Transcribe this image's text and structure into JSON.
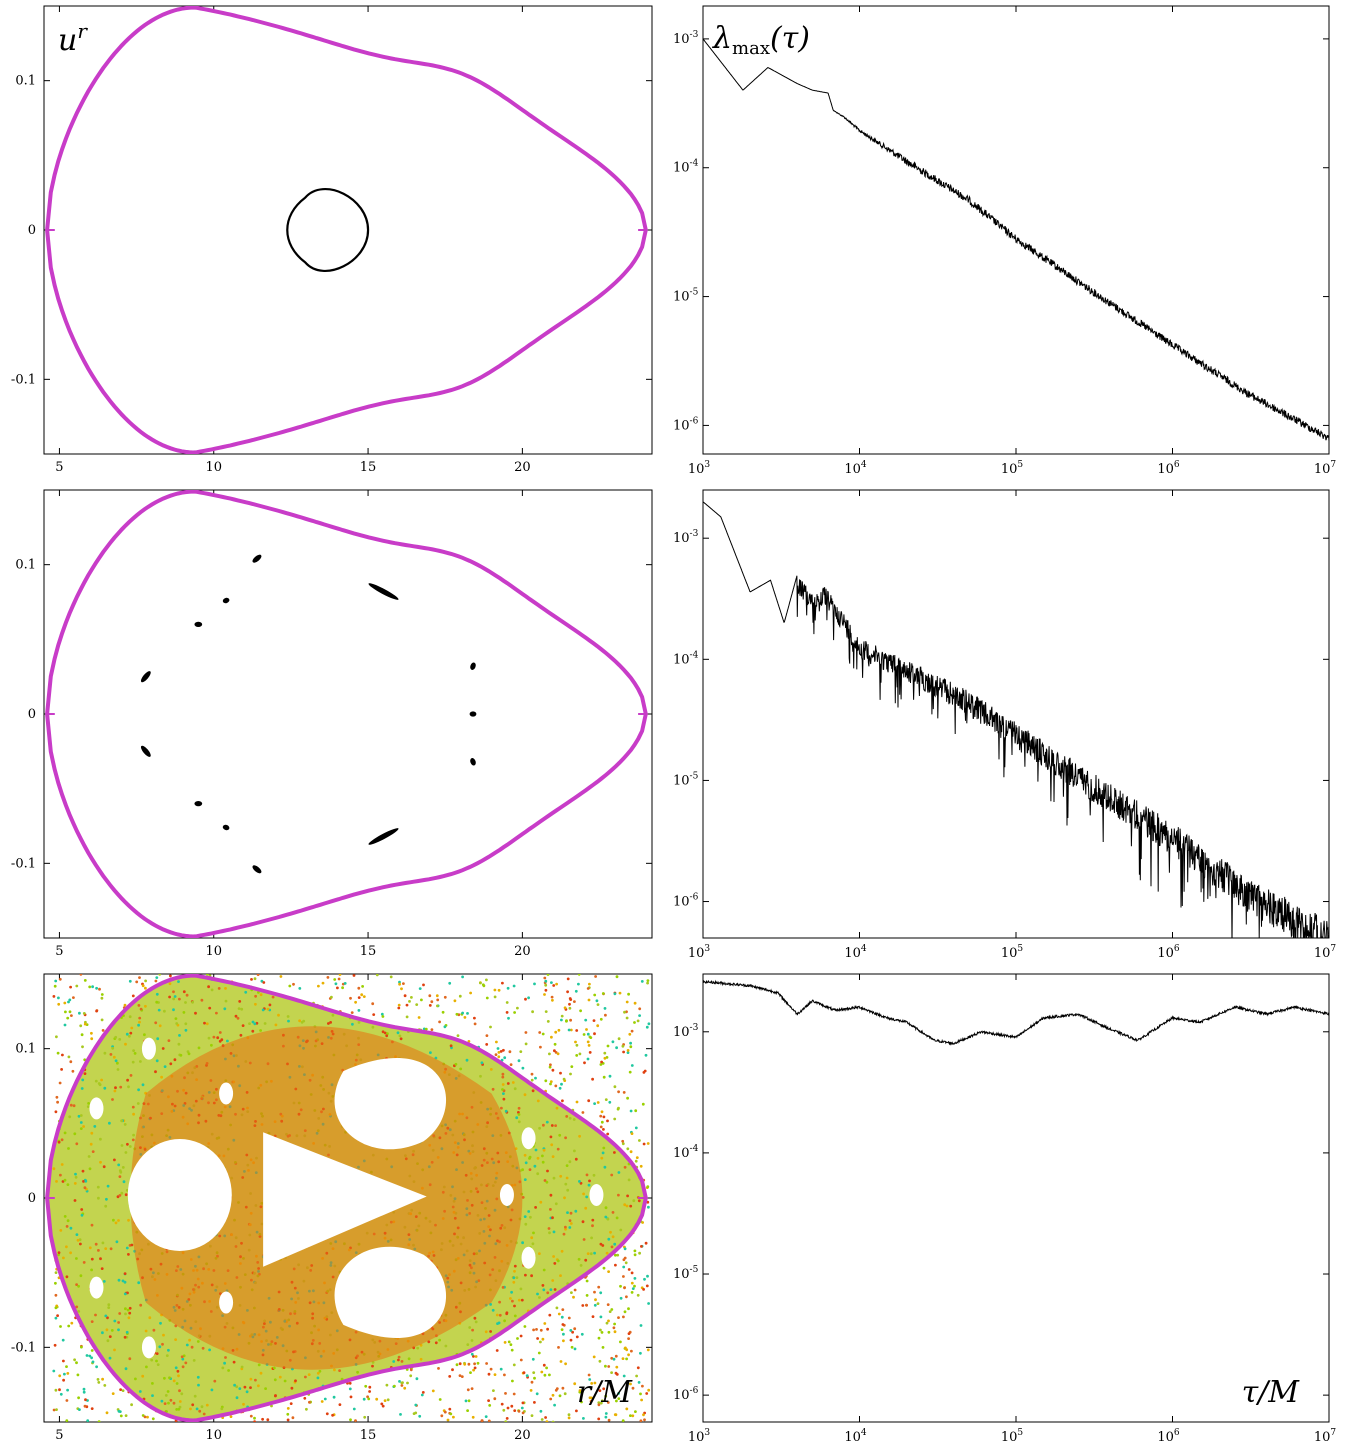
{
  "chart_data": [
    {
      "type": "scatter",
      "panel": "top-left",
      "ylabel": "u^r",
      "ylabel_base": "u",
      "ylabel_sup": "r",
      "xlabel": "",
      "xlim": [
        4.5,
        24.2
      ],
      "ylim": [
        -0.15,
        0.15
      ],
      "xticks": [
        "5",
        "10",
        "15",
        "20"
      ],
      "xtick_values": [
        5,
        10,
        15,
        20
      ],
      "yticks": [
        "0.1",
        "0",
        "-0.1"
      ],
      "ytick_values": [
        0.1,
        0,
        -0.1
      ],
      "separatrix_color": "#c83cc8",
      "orbit_color": "#000000",
      "orbits": [
        {
          "kind": "separatrix",
          "r_min": 4.6,
          "r_max": 24.0,
          "ur_max": 0.149,
          "r_peak": 9.4
        },
        {
          "kind": "loop",
          "r_min": 12.3,
          "r_max": 15.0,
          "ur_max": 0.024,
          "center_r": 13.4
        }
      ]
    },
    {
      "type": "line",
      "panel": "top-right",
      "ylabel": "λmax(τ)",
      "ylabel_main": "λ",
      "ylabel_sub": "max",
      "ylabel_arg": "(τ)",
      "xlabel": "",
      "xscale": "log",
      "yscale": "log",
      "xlim": [
        1000,
        10000000
      ],
      "ylim": [
        6e-07,
        0.0018
      ],
      "xticks": [
        {
          "base": "10",
          "exp": "3"
        },
        {
          "base": "10",
          "exp": "4"
        },
        {
          "base": "10",
          "exp": "5"
        },
        {
          "base": "10",
          "exp": "6"
        },
        {
          "base": "10",
          "exp": "7"
        }
      ],
      "xtick_values": [
        1000,
        10000,
        100000,
        1000000,
        10000000
      ],
      "yticks": [
        {
          "base": "10",
          "exp": "-3"
        },
        {
          "base": "10",
          "exp": "-4"
        },
        {
          "base": "10",
          "exp": "-5"
        },
        {
          "base": "10",
          "exp": "-6"
        }
      ],
      "ytick_values": [
        0.001,
        0.0001,
        1e-05,
        1e-06
      ],
      "x": [
        1000,
        1800,
        2600,
        4000,
        5000,
        6300,
        6800,
        8000,
        10000,
        20000,
        50000,
        100000,
        300000,
        1000000,
        3000000,
        10000000
      ],
      "y": [
        0.001,
        0.0004,
        0.0006,
        0.00045,
        0.0004,
        0.00038,
        0.00028,
        0.00025,
        0.0002,
        0.00012,
        6e-05,
        3e-05,
        1.2e-05,
        4.5e-06,
        1.9e-06,
        8.5e-07
      ]
    },
    {
      "type": "scatter",
      "panel": "middle-left",
      "xlabel": "",
      "xlim": [
        4.5,
        24.2
      ],
      "ylim": [
        -0.15,
        0.15
      ],
      "xticks": [
        "5",
        "10",
        "15",
        "20"
      ],
      "xtick_values": [
        5,
        10,
        15,
        20
      ],
      "yticks": [
        "0.1",
        "0",
        "-0.1"
      ],
      "ytick_values": [
        0.1,
        0,
        -0.1
      ],
      "separatrix_color": "#c83cc8",
      "island_color": "#000000",
      "islands": [
        {
          "r": 11.4,
          "ur": 0.104,
          "angle": -40,
          "len": 0.35
        },
        {
          "r": 10.4,
          "ur": 0.076,
          "angle": -20,
          "len": 0.22
        },
        {
          "r": 9.5,
          "ur": 0.06,
          "angle": 0,
          "len": 0.25
        },
        {
          "r": 15.5,
          "ur": 0.082,
          "angle": 28,
          "len": 1.1
        },
        {
          "r": 7.8,
          "ur": 0.025,
          "angle": -50,
          "len": 0.45
        },
        {
          "r": 18.4,
          "ur": 0.032,
          "angle": -70,
          "len": 0.25
        },
        {
          "r": 18.4,
          "ur": 0.0,
          "angle": 0,
          "len": 0.22
        },
        {
          "r": 18.4,
          "ur": -0.032,
          "angle": 70,
          "len": 0.25
        },
        {
          "r": 7.8,
          "ur": -0.025,
          "angle": 50,
          "len": 0.45
        },
        {
          "r": 9.5,
          "ur": -0.06,
          "angle": 0,
          "len": 0.25
        },
        {
          "r": 10.4,
          "ur": -0.076,
          "angle": 20,
          "len": 0.22
        },
        {
          "r": 15.5,
          "ur": -0.082,
          "angle": -28,
          "len": 1.1
        },
        {
          "r": 11.4,
          "ur": -0.104,
          "angle": 40,
          "len": 0.35
        }
      ]
    },
    {
      "type": "line",
      "panel": "middle-right",
      "xscale": "log",
      "yscale": "log",
      "xlim": [
        1000,
        10000000
      ],
      "ylim": [
        5e-07,
        0.0025
      ],
      "xticks": [
        {
          "base": "10",
          "exp": "3"
        },
        {
          "base": "10",
          "exp": "4"
        },
        {
          "base": "10",
          "exp": "5"
        },
        {
          "base": "10",
          "exp": "6"
        },
        {
          "base": "10",
          "exp": "7"
        }
      ],
      "xtick_values": [
        1000,
        10000,
        100000,
        1000000,
        10000000
      ],
      "yticks": [
        {
          "base": "10",
          "exp": "-3"
        },
        {
          "base": "10",
          "exp": "-4"
        },
        {
          "base": "10",
          "exp": "-5"
        },
        {
          "base": "10",
          "exp": "-6"
        }
      ],
      "ytick_values": [
        0.001,
        0.0001,
        1e-05,
        1e-06
      ],
      "x": [
        1000,
        1300,
        2000,
        2700,
        3300,
        4000,
        5000,
        6000,
        8000,
        10000,
        20000,
        50000,
        100000,
        300000,
        1000000,
        3000000,
        10000000
      ],
      "y": [
        0.002,
        0.0015,
        0.00036,
        0.00045,
        0.0002,
        0.0005,
        0.00035,
        0.0004,
        0.00024,
        0.00015,
        0.0001,
        5.5e-05,
        3e-05,
        1.2e-05,
        4.5e-06,
        1.6e-06,
        7e-07
      ]
    },
    {
      "type": "scatter",
      "panel": "bottom-left",
      "xlabel": "r/M",
      "xlim": [
        4.5,
        24.2
      ],
      "ylim": [
        -0.15,
        0.15
      ],
      "xticks": [
        "5",
        "10",
        "15",
        "20"
      ],
      "xtick_values": [
        5,
        10,
        15,
        20
      ],
      "yticks": [
        "0.1",
        "0",
        "-0.1"
      ],
      "ytick_values": [
        0.1,
        0,
        -0.1
      ],
      "separatrix_color": "#c83cc8",
      "chaos_colors": [
        "#a8c820",
        "#e8b000",
        "#e04010",
        "#20c8a0",
        "#e06820",
        "#9ad000"
      ],
      "inner_color": "#e87010"
    },
    {
      "type": "line",
      "panel": "bottom-right",
      "xlabel": "τ/M",
      "xscale": "log",
      "yscale": "log",
      "xlim": [
        1000,
        10000000
      ],
      "ylim": [
        6e-07,
        0.003
      ],
      "xticks": [
        {
          "base": "10",
          "exp": "3"
        },
        {
          "base": "10",
          "exp": "4"
        },
        {
          "base": "10",
          "exp": "5"
        },
        {
          "base": "10",
          "exp": "6"
        },
        {
          "base": "10",
          "exp": "7"
        }
      ],
      "xtick_values": [
        1000,
        10000,
        100000,
        1000000,
        10000000
      ],
      "yticks": [
        {
          "base": "10",
          "exp": "-3"
        },
        {
          "base": "10",
          "exp": "-4"
        },
        {
          "base": "10",
          "exp": "-5"
        },
        {
          "base": "10",
          "exp": "-6"
        }
      ],
      "ytick_values": [
        0.001,
        0.0001,
        1e-05,
        1e-06
      ],
      "x": [
        1000,
        2000,
        3000,
        4000,
        5000,
        7000,
        10000,
        15000,
        20000,
        30000,
        40000,
        60000,
        100000,
        150000,
        250000,
        400000,
        600000,
        1000000,
        1500000,
        2500000,
        4000000,
        6000000,
        10000000
      ],
      "y": [
        0.0026,
        0.0024,
        0.0021,
        0.0014,
        0.0018,
        0.0015,
        0.0016,
        0.0013,
        0.0012,
        0.00085,
        0.0008,
        0.001,
        0.0009,
        0.0013,
        0.0014,
        0.00105,
        0.00085,
        0.0013,
        0.0012,
        0.0016,
        0.0014,
        0.0016,
        0.0014
      ]
    }
  ]
}
